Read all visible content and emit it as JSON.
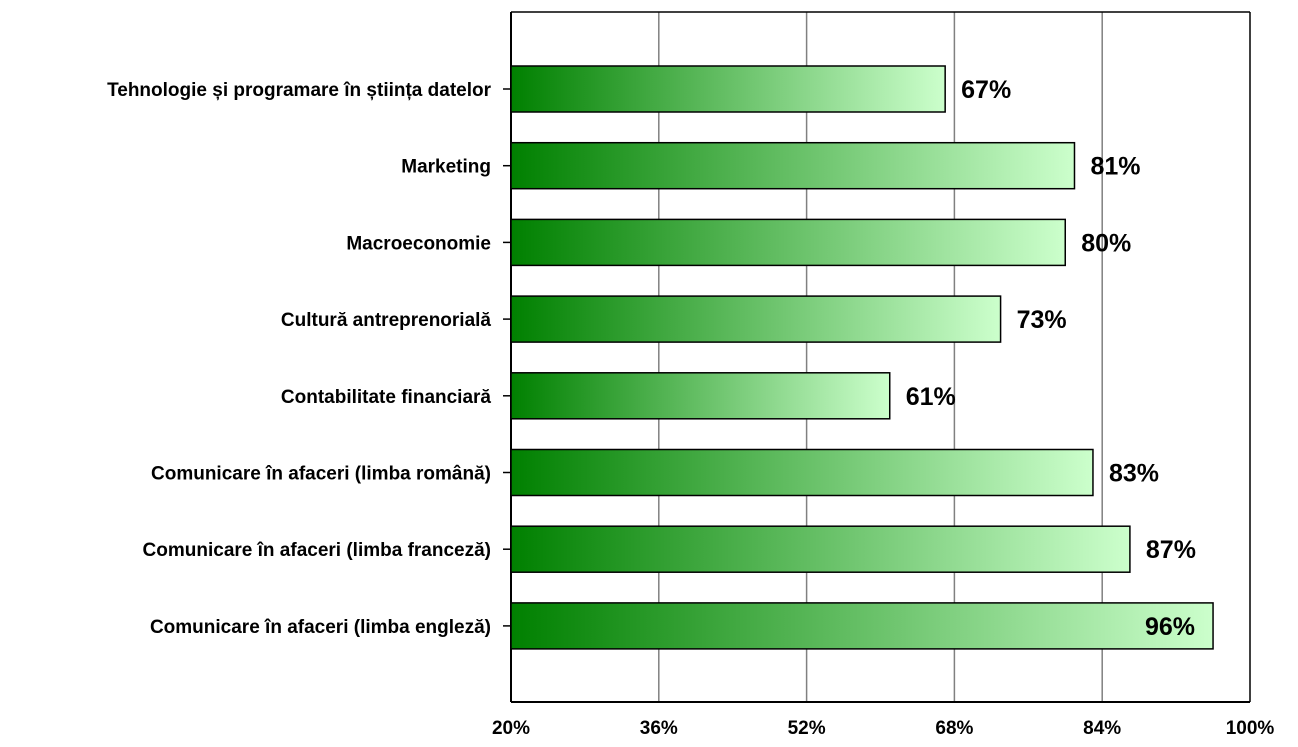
{
  "chart_data": {
    "type": "bar",
    "orientation": "horizontal",
    "categories": [
      "Tehnologie și programare în știința datelor",
      "Marketing",
      "Macroeconomie",
      "Cultură antreprenorială",
      "Contabilitate financiară",
      "Comunicare în afaceri (limba română)",
      "Comunicare în afaceri (limba franceză)",
      "Comunicare în afaceri (limba engleză)"
    ],
    "values": [
      67,
      81,
      80,
      73,
      61,
      83,
      87,
      96
    ],
    "value_labels": [
      "67%",
      "81%",
      "80%",
      "73%",
      "61%",
      "83%",
      "87%",
      "96%"
    ],
    "title": "",
    "xlabel": "",
    "ylabel": "",
    "xlim": [
      20,
      100
    ],
    "x_ticks": [
      20,
      36,
      52,
      68,
      84,
      100
    ],
    "x_tick_labels": [
      "20%",
      "36%",
      "52%",
      "68%",
      "84%",
      "100%"
    ],
    "grid": "vertical",
    "legend": "none",
    "colors": {
      "bar_start": "#008000",
      "bar_end": "#ccffcc",
      "bar_stroke": "#000000",
      "grid": "#808080",
      "axis": "#000000"
    }
  }
}
